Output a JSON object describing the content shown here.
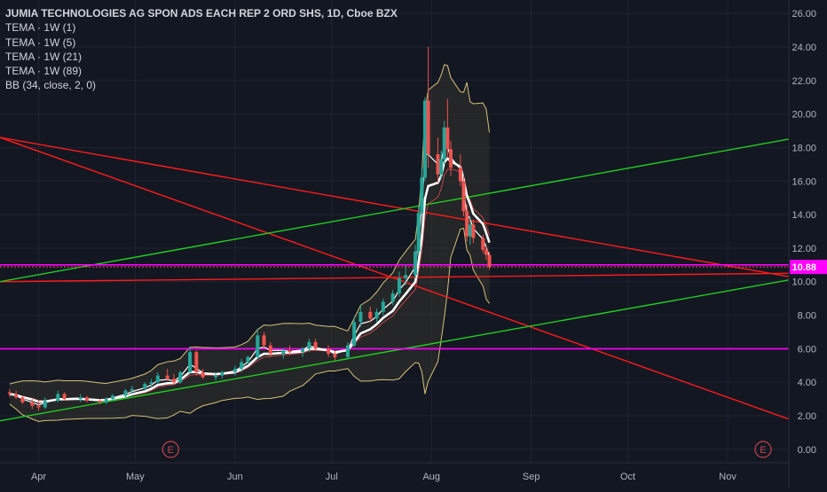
{
  "title": "JUMIA TECHNOLOGIES AG SPON ADS EACH REP 2 ORD SHS, 1D, Cboe BZX",
  "indicators": [
    "TEMA · 1W (1)",
    "TEMA · 1W (5)",
    "TEMA · 1W (21)",
    "TEMA · 1W (89)",
    "BB (34, close, 2, 0)"
  ],
  "earnings_marker": "E",
  "price_label": "10.88",
  "colors": {
    "background": "#131722",
    "up": "#26a69a",
    "down": "#ef5350",
    "trend_red": "#ff1a1a",
    "trend_green": "#22cc22",
    "level_magenta": "#ff00ff",
    "bb_band": "#d6c27a",
    "tema_white": "#ffffff"
  },
  "chart_data": {
    "type": "candlestick",
    "ylim": [
      -0.8,
      26.8
    ],
    "yticks": [
      "26.00",
      "24.00",
      "22.00",
      "20.00",
      "18.00",
      "16.00",
      "14.00",
      "12.00",
      "10.00",
      "8.00",
      "6.00",
      "4.00",
      "2.00",
      "0.00"
    ],
    "xticks": [
      "Apr",
      "May",
      "Jun",
      "Jul",
      "Aug",
      "Sep",
      "Oct",
      "Nov"
    ],
    "x_start": "2020-03-20",
    "x_end": "2020-11-20",
    "last_price": 10.88,
    "earnings_dates": [
      "2020-05-12",
      "2020-11-12"
    ],
    "horizontal_levels": [
      11.0,
      6.0
    ],
    "trendlines": [
      {
        "color": "red",
        "points": [
          [
            "2020-03-20",
            18.6
          ],
          [
            "2020-11-20",
            1.8
          ]
        ]
      },
      {
        "color": "red",
        "points": [
          [
            "2020-03-20",
            10.0
          ],
          [
            "2020-11-20",
            10.5
          ]
        ]
      },
      {
        "color": "red",
        "points": [
          [
            "2020-03-20",
            18.6
          ],
          [
            "2020-11-20",
            10.3
          ]
        ]
      },
      {
        "color": "green",
        "points": [
          [
            "2020-03-20",
            1.7
          ],
          [
            "2020-11-20",
            10.1
          ]
        ]
      },
      {
        "color": "green",
        "points": [
          [
            "2020-03-20",
            10.0
          ],
          [
            "2020-11-20",
            18.5
          ]
        ]
      }
    ],
    "candles": [
      [
        "2020-03-23",
        3.4,
        3.6,
        3.1,
        3.3
      ],
      [
        "2020-03-25",
        3.3,
        3.5,
        3.0,
        3.1
      ],
      [
        "2020-03-27",
        3.1,
        3.2,
        2.7,
        2.8
      ],
      [
        "2020-03-30",
        2.8,
        3.0,
        2.4,
        2.6
      ],
      [
        "2020-04-01",
        2.6,
        2.9,
        2.3,
        2.5
      ],
      [
        "2020-04-03",
        2.5,
        3.1,
        2.4,
        2.9
      ],
      [
        "2020-04-07",
        2.9,
        3.5,
        2.8,
        3.3
      ],
      [
        "2020-04-09",
        3.3,
        3.4,
        2.9,
        3.0
      ],
      [
        "2020-04-14",
        3.0,
        3.3,
        2.8,
        3.1
      ],
      [
        "2020-04-16",
        3.1,
        3.2,
        2.8,
        2.9
      ],
      [
        "2020-04-20",
        2.9,
        3.0,
        2.7,
        2.8
      ],
      [
        "2020-04-22",
        2.8,
        3.1,
        2.7,
        3.0
      ],
      [
        "2020-04-24",
        3.0,
        3.3,
        2.9,
        3.2
      ],
      [
        "2020-04-28",
        3.2,
        3.6,
        3.1,
        3.5
      ],
      [
        "2020-04-30",
        3.5,
        3.8,
        3.3,
        3.6
      ],
      [
        "2020-05-04",
        3.6,
        4.0,
        3.5,
        3.9
      ],
      [
        "2020-05-06",
        3.9,
        4.2,
        3.7,
        4.0
      ],
      [
        "2020-05-08",
        4.0,
        4.6,
        3.9,
        4.4
      ],
      [
        "2020-05-11",
        4.4,
        4.8,
        4.1,
        4.2
      ],
      [
        "2020-05-13",
        4.2,
        4.5,
        3.9,
        4.0
      ],
      [
        "2020-05-15",
        4.0,
        4.7,
        3.9,
        4.6
      ],
      [
        "2020-05-18",
        4.6,
        6.1,
        4.5,
        5.8
      ],
      [
        "2020-05-20",
        5.8,
        5.9,
        4.4,
        4.6
      ],
      [
        "2020-05-22",
        4.6,
        4.8,
        4.2,
        4.3
      ],
      [
        "2020-05-26",
        4.3,
        4.6,
        4.1,
        4.4
      ],
      [
        "2020-05-28",
        4.4,
        4.7,
        4.2,
        4.6
      ],
      [
        "2020-06-01",
        4.6,
        5.0,
        4.4,
        4.8
      ],
      [
        "2020-06-03",
        4.8,
        5.4,
        4.6,
        5.2
      ],
      [
        "2020-06-05",
        5.2,
        5.6,
        5.0,
        5.5
      ],
      [
        "2020-06-08",
        5.5,
        7.2,
        5.4,
        6.8
      ],
      [
        "2020-06-10",
        6.8,
        7.0,
        6.0,
        6.2
      ],
      [
        "2020-06-12",
        6.2,
        6.4,
        5.5,
        5.7
      ],
      [
        "2020-06-16",
        5.7,
        6.0,
        5.4,
        5.9
      ],
      [
        "2020-06-18",
        5.9,
        6.2,
        5.6,
        5.8
      ],
      [
        "2020-06-22",
        5.8,
        6.1,
        5.5,
        6.0
      ],
      [
        "2020-06-24",
        6.0,
        6.6,
        5.8,
        6.4
      ],
      [
        "2020-06-26",
        6.4,
        6.6,
        5.9,
        6.0
      ],
      [
        "2020-06-30",
        6.0,
        6.2,
        5.5,
        5.7
      ],
      [
        "2020-07-02",
        5.7,
        5.9,
        5.3,
        5.5
      ],
      [
        "2020-07-06",
        5.5,
        6.4,
        5.4,
        6.2
      ],
      [
        "2020-07-08",
        6.2,
        7.9,
        6.1,
        7.6
      ],
      [
        "2020-07-10",
        7.6,
        8.6,
        7.3,
        8.2
      ],
      [
        "2020-07-13",
        8.2,
        8.5,
        7.6,
        7.8
      ],
      [
        "2020-07-15",
        7.8,
        8.4,
        7.6,
        8.2
      ],
      [
        "2020-07-17",
        8.2,
        9.0,
        8.0,
        8.8
      ],
      [
        "2020-07-20",
        8.8,
        9.5,
        8.6,
        9.3
      ],
      [
        "2020-07-22",
        9.3,
        10.6,
        9.1,
        10.2
      ],
      [
        "2020-07-24",
        10.2,
        11.0,
        9.8,
        10.4
      ],
      [
        "2020-07-27",
        10.4,
        12.2,
        10.2,
        11.8
      ],
      [
        "2020-07-28",
        11.8,
        14.6,
        11.6,
        14.1
      ],
      [
        "2020-07-29",
        14.1,
        16.8,
        13.9,
        16.2
      ],
      [
        "2020-07-30",
        16.2,
        21.0,
        16.0,
        20.8
      ],
      [
        "2020-07-31",
        20.8,
        24.0,
        16.8,
        17.6
      ],
      [
        "2020-08-03",
        17.6,
        18.6,
        15.9,
        16.4
      ],
      [
        "2020-08-04",
        16.4,
        17.8,
        16.1,
        17.3
      ],
      [
        "2020-08-05",
        17.3,
        19.6,
        17.0,
        19.2
      ],
      [
        "2020-08-06",
        19.2,
        20.9,
        17.4,
        17.9
      ],
      [
        "2020-08-07",
        17.9,
        18.4,
        16.3,
        16.8
      ],
      [
        "2020-08-10",
        16.8,
        17.6,
        15.7,
        16.0
      ],
      [
        "2020-08-11",
        16.0,
        16.3,
        13.9,
        14.2
      ],
      [
        "2020-08-12",
        14.2,
        14.6,
        12.4,
        12.7
      ],
      [
        "2020-08-13",
        12.7,
        13.9,
        12.2,
        13.4
      ],
      [
        "2020-08-14",
        13.4,
        13.7,
        12.3,
        12.6
      ],
      [
        "2020-08-17",
        12.6,
        12.8,
        11.7,
        11.9
      ],
      [
        "2020-08-18",
        11.9,
        12.1,
        11.3,
        11.6
      ],
      [
        "2020-08-19",
        11.6,
        11.8,
        10.7,
        10.88
      ]
    ]
  }
}
